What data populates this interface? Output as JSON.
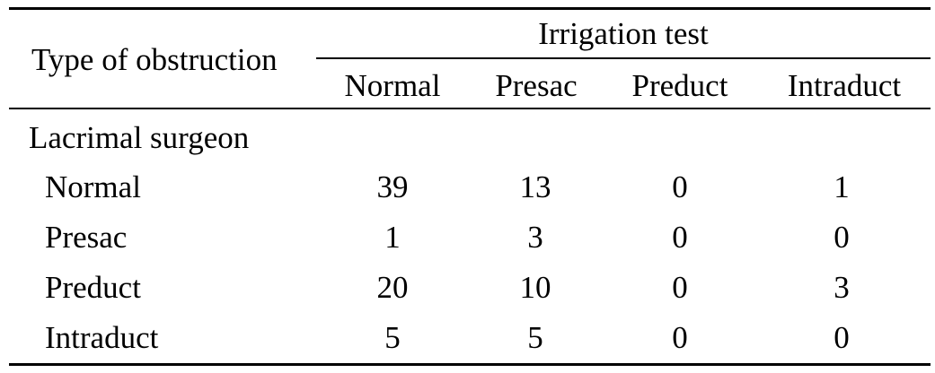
{
  "table": {
    "stub_header": "Type of obstruction",
    "group_header": "Irrigation test",
    "columns": [
      "Normal",
      "Presac",
      "Preduct",
      "Intraduct"
    ],
    "section_label": "Lacrimal surgeon",
    "rows": [
      {
        "label": "Normal",
        "values": [
          "39",
          "13",
          "0",
          "1"
        ]
      },
      {
        "label": "Presac",
        "values": [
          "1",
          "3",
          "0",
          "0"
        ]
      },
      {
        "label": "Preduct",
        "values": [
          "20",
          "10",
          "0",
          "3"
        ]
      },
      {
        "label": "Intraduct",
        "values": [
          "5",
          "5",
          "0",
          "0"
        ]
      }
    ]
  }
}
